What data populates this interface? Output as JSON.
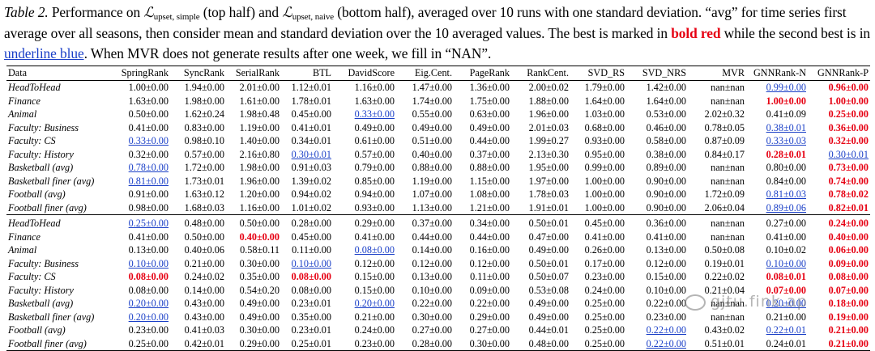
{
  "caption": {
    "label": "Table 2.",
    "part1": " Performance on ",
    "loss_symbol": "ℒ",
    "sub_simple": "upset, simple",
    "part2": " (top half) and ",
    "sub_naive": "upset, naive",
    "part3": " (bottom half), averaged over 10 runs with one standard deviation. “avg” for time series first average over all seasons, then consider mean and standard deviation over the 10 averaged values. The best is marked in ",
    "bold_red": "bold red",
    "part4": " while the second best is in ",
    "underline_blue": "underline blue",
    "part5": ". When MVR does not generate results after one week, we fill in “NAN”."
  },
  "table": {
    "columns": [
      "Data",
      "SpringRank",
      "SyncRank",
      "SerialRank",
      "BTL",
      "DavidScore",
      "Eig.Cent.",
      "PageRank",
      "RankCent.",
      "SVD_RS",
      "SVD_NRS",
      "MVR",
      "GNNRank-N",
      "GNNRank-P"
    ],
    "top_rows": [
      {
        "name": "HeadToHead",
        "cells": [
          "1.00±0.00",
          "1.94±0.00",
          "2.01±0.00",
          "1.12±0.01",
          "1.16±0.00",
          "1.47±0.00",
          "1.36±0.00",
          "2.00±0.02",
          "1.79±0.00",
          "1.42±0.00",
          "nan±nan",
          "0.99±0.00",
          "0.96±0.00"
        ],
        "best": [
          12
        ],
        "second": [
          11
        ]
      },
      {
        "name": "Finance",
        "cells": [
          "1.63±0.00",
          "1.98±0.00",
          "1.61±0.00",
          "1.78±0.01",
          "1.63±0.00",
          "1.74±0.00",
          "1.75±0.00",
          "1.88±0.00",
          "1.64±0.00",
          "1.64±0.00",
          "nan±nan",
          "1.00±0.00",
          "1.00±0.00"
        ],
        "best": [
          11,
          12
        ],
        "second": []
      },
      {
        "name": "Animal",
        "cells": [
          "0.50±0.00",
          "1.62±0.24",
          "1.98±0.48",
          "0.45±0.00",
          "0.33±0.00",
          "0.55±0.00",
          "0.63±0.00",
          "1.96±0.00",
          "1.03±0.00",
          "0.53±0.00",
          "2.02±0.32",
          "0.41±0.09",
          "0.25±0.00"
        ],
        "best": [
          12
        ],
        "second": [
          4
        ]
      },
      {
        "name": "Faculty: Business",
        "cells": [
          "0.41±0.00",
          "0.83±0.00",
          "1.19±0.00",
          "0.41±0.01",
          "0.49±0.00",
          "0.49±0.00",
          "0.49±0.00",
          "2.01±0.03",
          "0.68±0.00",
          "0.46±0.00",
          "0.78±0.05",
          "0.38±0.01",
          "0.36±0.00"
        ],
        "best": [
          12
        ],
        "second": [
          11
        ]
      },
      {
        "name": "Faculty: CS",
        "cells": [
          "0.33±0.00",
          "0.98±0.10",
          "1.40±0.00",
          "0.34±0.01",
          "0.61±0.00",
          "0.51±0.00",
          "0.44±0.00",
          "1.99±0.27",
          "0.93±0.00",
          "0.58±0.00",
          "0.87±0.09",
          "0.33±0.03",
          "0.32±0.00"
        ],
        "best": [
          12
        ],
        "second": [
          0,
          11
        ]
      },
      {
        "name": "Faculty: History",
        "cells": [
          "0.32±0.00",
          "0.57±0.00",
          "2.16±0.80",
          "0.30±0.01",
          "0.57±0.00",
          "0.40±0.00",
          "0.37±0.00",
          "2.13±0.30",
          "0.95±0.00",
          "0.38±0.00",
          "0.84±0.17",
          "0.28±0.01",
          "0.30±0.01"
        ],
        "best": [
          11
        ],
        "second": [
          3,
          12
        ]
      },
      {
        "name": "Basketball (avg)",
        "cells": [
          "0.78±0.00",
          "1.72±0.00",
          "1.98±0.00",
          "0.91±0.03",
          "0.79±0.00",
          "0.88±0.00",
          "0.88±0.00",
          "1.95±0.00",
          "0.99±0.00",
          "0.89±0.00",
          "nan±nan",
          "0.80±0.00",
          "0.73±0.00"
        ],
        "best": [
          12
        ],
        "second": [
          0
        ]
      },
      {
        "name": "Basketball finer (avg)",
        "cells": [
          "0.81±0.00",
          "1.73±0.01",
          "1.96±0.00",
          "1.39±0.02",
          "0.85±0.00",
          "1.19±0.00",
          "1.15±0.00",
          "1.97±0.00",
          "1.00±0.00",
          "0.90±0.00",
          "nan±nan",
          "0.84±0.00",
          "0.74±0.00"
        ],
        "best": [
          12
        ],
        "second": [
          0
        ]
      },
      {
        "name": "Football (avg)",
        "cells": [
          "0.91±0.00",
          "1.63±0.12",
          "1.20±0.00",
          "0.94±0.02",
          "0.94±0.00",
          "1.07±0.00",
          "1.08±0.00",
          "1.78±0.03",
          "1.00±0.00",
          "0.90±0.00",
          "1.72±0.09",
          "0.81±0.03",
          "0.78±0.02"
        ],
        "best": [
          12
        ],
        "second": [
          11
        ]
      },
      {
        "name": "Football finer (avg)",
        "cells": [
          "0.98±0.00",
          "1.68±0.03",
          "1.16±0.00",
          "1.01±0.02",
          "0.93±0.00",
          "1.13±0.00",
          "1.21±0.00",
          "1.91±0.01",
          "1.00±0.00",
          "0.90±0.00",
          "2.06±0.04",
          "0.89±0.06",
          "0.82±0.01"
        ],
        "best": [
          12
        ],
        "second": [
          11
        ]
      }
    ],
    "bottom_rows": [
      {
        "name": "HeadToHead",
        "cells": [
          "0.25±0.00",
          "0.48±0.00",
          "0.50±0.00",
          "0.28±0.00",
          "0.29±0.00",
          "0.37±0.00",
          "0.34±0.00",
          "0.50±0.01",
          "0.45±0.00",
          "0.36±0.00",
          "nan±nan",
          "0.27±0.00",
          "0.24±0.00"
        ],
        "best": [
          12
        ],
        "second": [
          0
        ]
      },
      {
        "name": "Finance",
        "cells": [
          "0.41±0.00",
          "0.50±0.00",
          "0.40±0.00",
          "0.45±0.00",
          "0.41±0.00",
          "0.44±0.00",
          "0.44±0.00",
          "0.47±0.00",
          "0.41±0.00",
          "0.41±0.00",
          "nan±nan",
          "0.41±0.00",
          "0.40±0.00"
        ],
        "best": [
          2,
          12
        ],
        "second": []
      },
      {
        "name": "Animal",
        "cells": [
          "0.13±0.00",
          "0.40±0.06",
          "0.58±0.11",
          "0.11±0.00",
          "0.08±0.00",
          "0.14±0.00",
          "0.16±0.00",
          "0.49±0.00",
          "0.26±0.00",
          "0.13±0.00",
          "0.50±0.08",
          "0.10±0.02",
          "0.06±0.00"
        ],
        "best": [
          12
        ],
        "second": [
          4
        ]
      },
      {
        "name": "Faculty: Business",
        "cells": [
          "0.10±0.00",
          "0.21±0.00",
          "0.30±0.00",
          "0.10±0.00",
          "0.12±0.00",
          "0.12±0.00",
          "0.12±0.00",
          "0.50±0.01",
          "0.17±0.00",
          "0.12±0.00",
          "0.19±0.01",
          "0.10±0.00",
          "0.09±0.00"
        ],
        "best": [
          12
        ],
        "second": [
          0,
          3,
          11
        ]
      },
      {
        "name": "Faculty: CS",
        "cells": [
          "0.08±0.00",
          "0.24±0.02",
          "0.35±0.00",
          "0.08±0.00",
          "0.15±0.00",
          "0.13±0.00",
          "0.11±0.00",
          "0.50±0.07",
          "0.23±0.00",
          "0.15±0.00",
          "0.22±0.02",
          "0.08±0.01",
          "0.08±0.00"
        ],
        "best": [
          0,
          3,
          11,
          12
        ],
        "second": []
      },
      {
        "name": "Faculty: History",
        "cells": [
          "0.08±0.00",
          "0.14±0.00",
          "0.54±0.20",
          "0.08±0.00",
          "0.15±0.00",
          "0.10±0.00",
          "0.09±0.00",
          "0.53±0.08",
          "0.24±0.00",
          "0.10±0.00",
          "0.21±0.04",
          "0.07±0.00",
          "0.07±0.00"
        ],
        "best": [
          11,
          12
        ],
        "second": []
      },
      {
        "name": "Basketball (avg)",
        "cells": [
          "0.20±0.00",
          "0.43±0.00",
          "0.49±0.00",
          "0.23±0.01",
          "0.20±0.00",
          "0.22±0.00",
          "0.22±0.00",
          "0.49±0.00",
          "0.25±0.00",
          "0.22±0.00",
          "nan±nan",
          "0.20±0.00",
          "0.18±0.00"
        ],
        "best": [
          12
        ],
        "second": [
          0,
          4,
          11
        ]
      },
      {
        "name": "Basketball finer (avg)",
        "cells": [
          "0.20±0.00",
          "0.43±0.00",
          "0.49±0.00",
          "0.35±0.00",
          "0.21±0.00",
          "0.30±0.00",
          "0.29±0.00",
          "0.49±0.00",
          "0.25±0.00",
          "0.23±0.00",
          "nan±nan",
          "0.21±0.00",
          "0.19±0.00"
        ],
        "best": [
          12
        ],
        "second": [
          0
        ]
      },
      {
        "name": "Football (avg)",
        "cells": [
          "0.23±0.00",
          "0.41±0.03",
          "0.30±0.00",
          "0.23±0.01",
          "0.24±0.00",
          "0.27±0.00",
          "0.27±0.00",
          "0.44±0.01",
          "0.25±0.00",
          "0.22±0.00",
          "0.43±0.02",
          "0.22±0.01",
          "0.21±0.00"
        ],
        "best": [
          12
        ],
        "second": [
          9,
          11
        ]
      },
      {
        "name": "Football finer (avg)",
        "cells": [
          "0.25±0.00",
          "0.42±0.01",
          "0.29±0.00",
          "0.25±0.01",
          "0.23±0.00",
          "0.28±0.00",
          "0.30±0.00",
          "0.48±0.00",
          "0.25±0.00",
          "0.22±0.00",
          "0.51±0.01",
          "0.24±0.01",
          "0.21±0.00"
        ],
        "best": [
          12
        ],
        "second": [
          9
        ]
      }
    ]
  },
  "watermark": "gjtu.fink.ap",
  "colors": {
    "best": "#e60012",
    "second": "#1a3fc7"
  }
}
